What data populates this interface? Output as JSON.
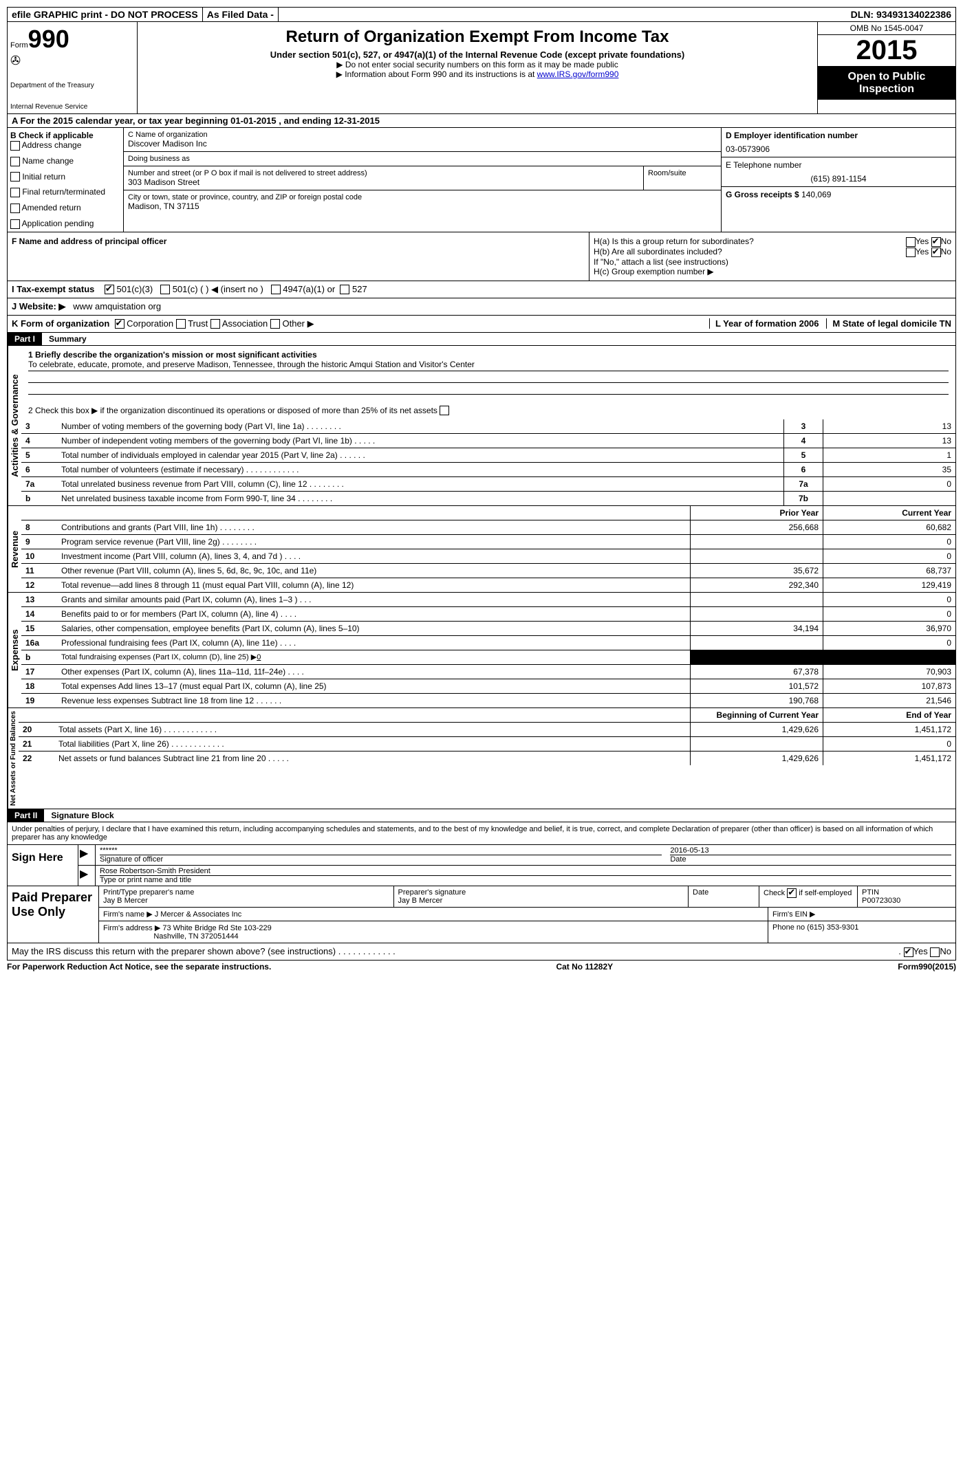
{
  "top": {
    "efile": "efile GRAPHIC print - DO NOT PROCESS",
    "asfiled": "As Filed Data -",
    "dln_label": "DLN:",
    "dln": "93493134022386"
  },
  "header": {
    "form_label": "Form",
    "form_no": "990",
    "dept1": "Department of the Treasury",
    "dept2": "Internal Revenue Service",
    "title": "Return of Organization Exempt From Income Tax",
    "subtitle": "Under section 501(c), 527, or 4947(a)(1) of the Internal Revenue Code (except private foundations)",
    "note1": "▶ Do not enter social security numbers on this form as it may be made public",
    "note2_pre": "▶ Information about Form 990 and its instructions is at ",
    "note2_link": "www.IRS.gov/form990",
    "omb": "OMB No 1545-0047",
    "year": "2015",
    "open": "Open to Public Inspection"
  },
  "A": {
    "text_pre": "A   For the 2015 calendar year, or tax year beginning ",
    "begin": "01-01-2015",
    "mid": " , and ending ",
    "end": "12-31-2015"
  },
  "B": {
    "label": "B  Check if applicable",
    "opts": [
      "Address change",
      "Name change",
      "Initial return",
      "Final return/terminated",
      "Amended return",
      "Application pending"
    ]
  },
  "C": {
    "name_label": "C Name of organization",
    "name": "Discover Madison Inc",
    "dba_label": "Doing business as",
    "addr_label": "Number and street (or P O  box if mail is not delivered to street address)",
    "room_label": "Room/suite",
    "addr": "303 Madison Street",
    "city_label": "City or town, state or province, country, and ZIP or foreign postal code",
    "city": "Madison, TN  37115"
  },
  "D": {
    "label": "D Employer identification number",
    "val": "03-0573906"
  },
  "E": {
    "label": "E Telephone number",
    "val": "(615) 891-1154"
  },
  "G": {
    "label": "G Gross receipts $",
    "val": "140,069"
  },
  "F": {
    "label": "F    Name and address of principal officer"
  },
  "H": {
    "a": "H(a)  Is this a group return for subordinates?",
    "b": "H(b)  Are all subordinates included?",
    "note": "If \"No,\" attach a list  (see instructions)",
    "c": "H(c)   Group exemption number ▶",
    "yes": "Yes",
    "no": "No"
  },
  "I": {
    "label": "I   Tax-exempt status",
    "o1": "501(c)(3)",
    "o2": "501(c) (  ) ◀ (insert no )",
    "o3": "4947(a)(1) or",
    "o4": "527"
  },
  "J": {
    "label": "J   Website: ▶",
    "val": "www amquistation org"
  },
  "K": {
    "label": "K Form of organization",
    "o1": "Corporation",
    "o2": "Trust",
    "o3": "Association",
    "o4": "Other ▶",
    "L": "L Year of formation  2006",
    "M": "M State of legal domicile   TN"
  },
  "part1": {
    "label": "Part I",
    "name": "Summary",
    "q1_label": "1 Briefly describe the organization's mission or most significant activities",
    "q1_val": "To celebrate, educate, promote, and preserve Madison, Tennessee, through the historic Amqui Station and Visitor's Center",
    "q2": "2  Check this box ▶     if the organization discontinued its operations or disposed of more than 25% of its net assets",
    "vlabel_ag": "Activities & Governance",
    "vlabel_rev": "Revenue",
    "vlabel_exp": "Expenses",
    "vlabel_net": "Net Assets or Fund Balances",
    "rows_ag": [
      {
        "n": "3",
        "d": "Number of voting members of the governing body (Part VI, line 1a)   .    .    .    .    .    .    .    .",
        "box": "3",
        "v": "13"
      },
      {
        "n": "4",
        "d": "Number of independent voting members of the governing body (Part VI, line 1b)     .    .    .    .    .",
        "box": "4",
        "v": "13"
      },
      {
        "n": "5",
        "d": "Total number of individuals employed in calendar year 2015 (Part V, line 2a)    .    .    .    .    .    .",
        "box": "5",
        "v": "1"
      },
      {
        "n": "6",
        "d": "Total number of volunteers (estimate if necessary)    .    .    .    .    .    .    .    .    .    .    .    .",
        "box": "6",
        "v": "35"
      },
      {
        "n": "7a",
        "d": "Total unrelated business revenue from Part VIII, column (C), line 12   .    .    .    .    .    .    .    .",
        "box": "7a",
        "v": "0"
      },
      {
        "n": "b",
        "d": "Net unrelated business taxable income from Form 990-T, line 34    .    .    .    .    .    .    .    .",
        "box": "7b",
        "v": ""
      }
    ],
    "col_prior": "Prior Year",
    "col_curr": "Current Year",
    "rows_rev": [
      {
        "n": "8",
        "d": "Contributions and grants (Part VIII, line 1h)    .    .    .    .    .    .    .    .",
        "p": "256,668",
        "c": "60,682"
      },
      {
        "n": "9",
        "d": "Program service revenue (Part VIII, line 2g)     .    .    .    .    .    .    .    .",
        "p": "",
        "c": "0"
      },
      {
        "n": "10",
        "d": "Investment income (Part VIII, column (A), lines 3, 4, and 7d )    .    .    .    .",
        "p": "",
        "c": "0"
      },
      {
        "n": "11",
        "d": "Other revenue (Part VIII, column (A), lines 5, 6d, 8c, 9c, 10c, and 11e)",
        "p": "35,672",
        "c": "68,737"
      },
      {
        "n": "12",
        "d": "Total revenue—add lines 8 through 11 (must equal Part VIII, column (A), line 12)",
        "p": "292,340",
        "c": "129,419"
      }
    ],
    "rows_exp": [
      {
        "n": "13",
        "d": "Grants and similar amounts paid (Part IX, column (A), lines 1–3 )    .    .    .",
        "p": "",
        "c": "0"
      },
      {
        "n": "14",
        "d": "Benefits paid to or for members (Part IX, column (A), line 4)    .    .    .    .",
        "p": "",
        "c": "0"
      },
      {
        "n": "15",
        "d": "Salaries, other compensation, employee benefits (Part IX, column (A), lines 5–10)",
        "p": "34,194",
        "c": "36,970"
      },
      {
        "n": "16a",
        "d": "Professional fundraising fees (Part IX, column (A), line 11e)    .    .    .    .",
        "p": "",
        "c": "0"
      },
      {
        "n": "b",
        "d": "Total fundraising expenses (Part IX, column (D), line 25) ▶",
        "p": "BLACK",
        "c": "BLACK",
        "fund": "0"
      },
      {
        "n": "17",
        "d": "Other expenses (Part IX, column (A), lines 11a–11d, 11f–24e)    .    .    .    .",
        "p": "67,378",
        "c": "70,903"
      },
      {
        "n": "18",
        "d": "Total expenses  Add lines 13–17 (must equal Part IX, column (A), line 25)",
        "p": "101,572",
        "c": "107,873"
      },
      {
        "n": "19",
        "d": "Revenue less expenses  Subtract line 18 from line 12    .    .    .    .    .    .",
        "p": "190,768",
        "c": "21,546"
      }
    ],
    "col_begin": "Beginning of Current Year",
    "col_end": "End of Year",
    "rows_net": [
      {
        "n": "20",
        "d": "Total assets (Part X, line 16)    .    .    .    .    .    .    .    .    .    .    .    .",
        "p": "1,429,626",
        "c": "1,451,172"
      },
      {
        "n": "21",
        "d": "Total liabilities (Part X, line 26)    .    .    .    .    .    .    .    .    .    .    .    .",
        "p": "",
        "c": "0"
      },
      {
        "n": "22",
        "d": "Net assets or fund balances  Subtract line 21 from line 20    .    .    .    .    .",
        "p": "1,429,626",
        "c": "1,451,172"
      }
    ]
  },
  "part2": {
    "label": "Part II",
    "name": "Signature Block",
    "decl": "Under penalties of perjury, I declare that I have examined this return, including accompanying schedules and statements, and to the best of my knowledge and belief, it is true, correct, and complete  Declaration of preparer (other than officer) is based on all information of which preparer has any knowledge",
    "sign_here": "Sign Here",
    "sig_mask": "******",
    "sig_date": "2016-05-13",
    "sig_officer_label": "Signature of officer",
    "date_label": "Date",
    "officer_name": "Rose Robertson-Smith President",
    "officer_label": "Type or print name and title",
    "paid": "Paid Preparer Use Only",
    "prep_name_label": "Print/Type preparer's name",
    "prep_name": "Jay B Mercer",
    "prep_sig_label": "Preparer's signature",
    "prep_sig": "Jay B Mercer",
    "prep_date_label": "Date",
    "check_label": "Check         if self-employed",
    "ptin_label": "PTIN",
    "ptin": "P00723030",
    "firm_name_label": "Firm's name      ▶",
    "firm_name": "J Mercer & Associates Inc",
    "firm_ein_label": "Firm's EIN ▶",
    "firm_addr_label": "Firm's address ▶",
    "firm_addr1": "73 White Bridge Rd Ste 103-229",
    "firm_addr2": "Nashville, TN  372051444",
    "phone_label": "Phone no  (615) 353-9301",
    "irs_q": "May the IRS discuss this return with the preparer shown above? (see instructions)    .    .    .    .    .    .    .    .    .    .    .    .",
    "yes": "Yes",
    "no": "No"
  },
  "footer": {
    "left": "For Paperwork Reduction Act Notice, see the separate instructions.",
    "mid": "Cat No  11282Y",
    "right": "Form990(2015)"
  }
}
